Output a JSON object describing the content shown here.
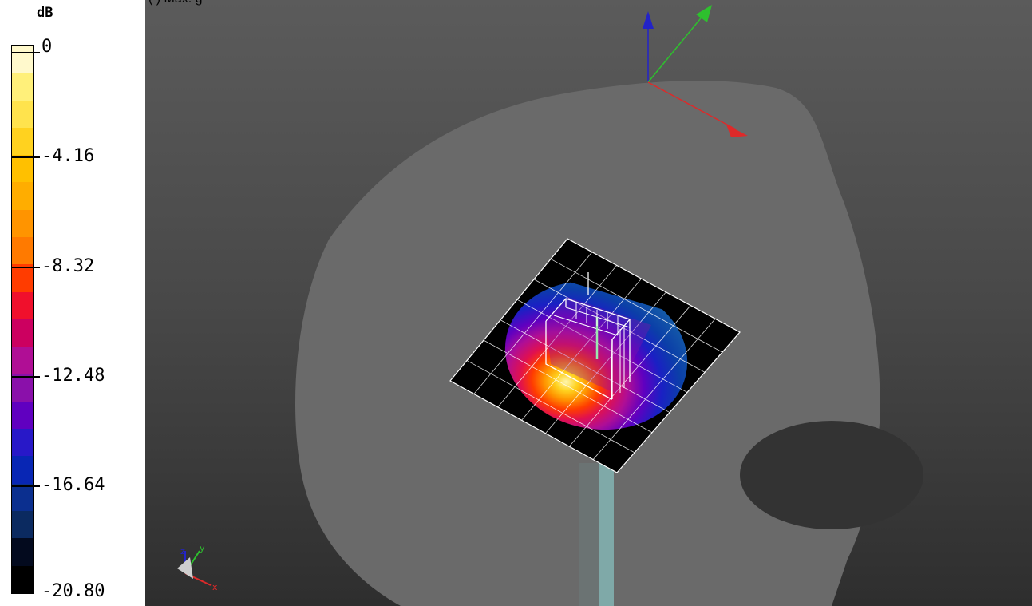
{
  "caption": "(          )    Max.     g",
  "legend": {
    "unit": "dB",
    "ticks": [
      "0",
      "-4.16",
      "-8.32",
      "-12.48",
      "-16.64",
      "-20.80"
    ],
    "band_colors": [
      "#fff9cc",
      "#fff07a",
      "#ffe34d",
      "#ffd21f",
      "#ffc000",
      "#ffad00",
      "#ff9400",
      "#ff7a00",
      "#ff3c00",
      "#f0102c",
      "#cc0060",
      "#b00e95",
      "#8a10aa",
      "#6000c0",
      "#2818c8",
      "#0826b4",
      "#0b2f8f",
      "#0b2a60",
      "#030a1e",
      "#000000"
    ]
  },
  "axes": {
    "main": {
      "x_color": "#dd2a2a",
      "y_color": "#2ec02e",
      "z_color": "#2323c8"
    },
    "mini_labels": {
      "x": "x",
      "y": "y",
      "z": "z"
    }
  },
  "colors": {
    "phantom": "#6a6a6a",
    "phantom_ear": "#333333",
    "mount": "#7fa9a8",
    "grid_line": "#ffffff"
  }
}
